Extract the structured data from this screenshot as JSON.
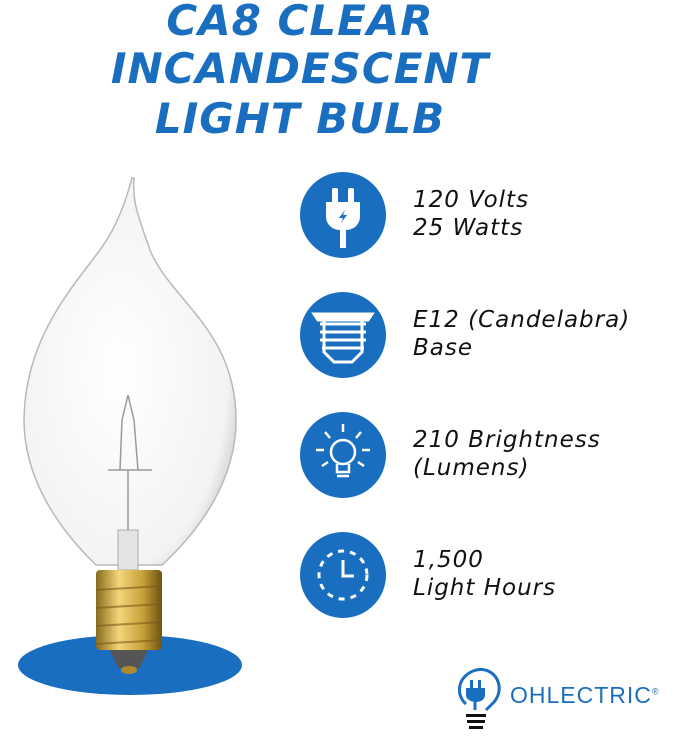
{
  "title": {
    "lines": [
      "CA8 CLEAR",
      "INCANDESCENT",
      "LIGHT BULB"
    ]
  },
  "features": [
    {
      "icon": "plug-icon",
      "line1": "120 Volts",
      "line2": "25 Watts"
    },
    {
      "icon": "bulb-base-icon",
      "line1": "E12 (Candelabra)",
      "line2": "Base"
    },
    {
      "icon": "lightbulb-icon",
      "line1": "210 Brightness",
      "line2": "(Lumens)"
    },
    {
      "icon": "clock-icon",
      "line1": "1,500",
      "line2": "Light Hours"
    }
  ],
  "brand": {
    "name": "OHLECTRIC",
    "mark": "®"
  },
  "colors": {
    "accent": "#1a6ec0",
    "brass": "#c9a23a"
  }
}
